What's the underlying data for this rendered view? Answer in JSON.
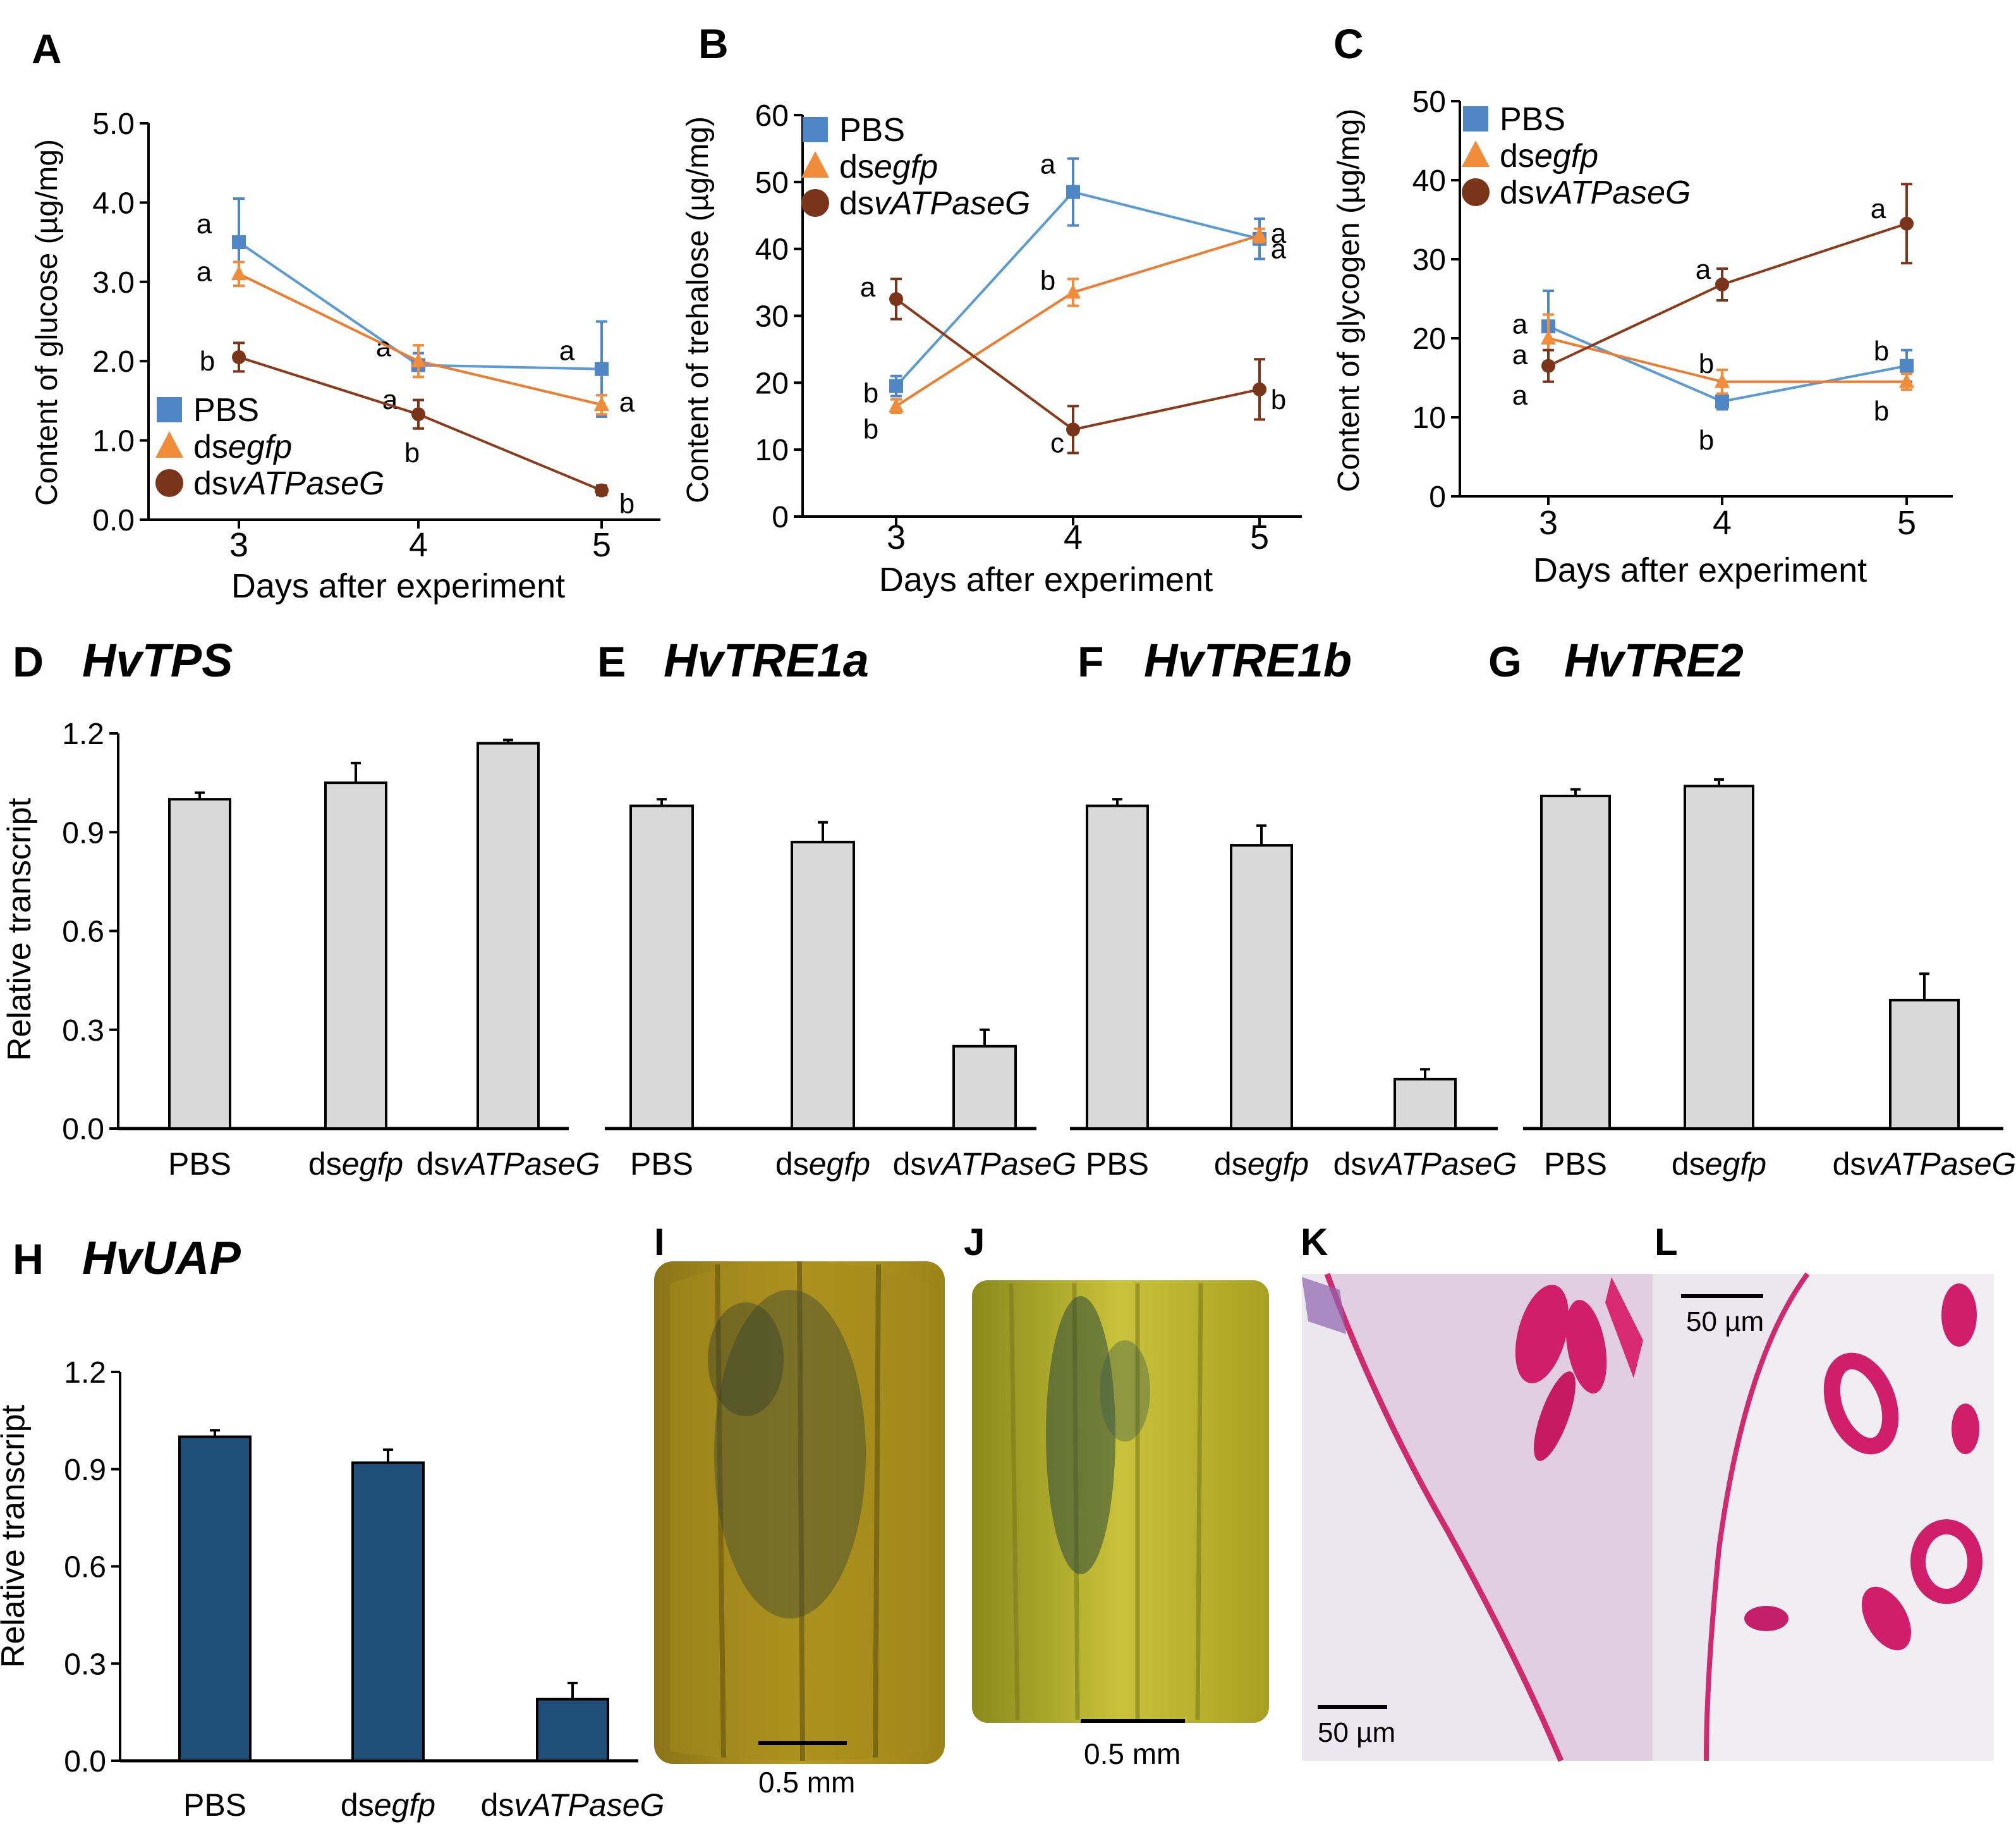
{
  "colors": {
    "pbs": "#4f86c6",
    "dsegfp": "#f08c3a",
    "dsvatpase": "#7a3419",
    "bar_gray": "#d9d9d9",
    "bar_blue": "#1f4e79",
    "axis": "#000000",
    "stain_pink": "#d6246e",
    "tissue_bg": "#e8d9e6"
  },
  "chart_data": [
    {
      "id": "A",
      "type": "line",
      "panel_label": "A",
      "xlabel": "Days after experiment",
      "ylabel": "Content of glucose (µg/mg)",
      "x": [
        3,
        4,
        5
      ],
      "x_ticks": [
        "3",
        "4",
        "5"
      ],
      "ylim": [
        0,
        5
      ],
      "y_ticks": [
        "0.0",
        "1.0",
        "2.0",
        "3.0",
        "4.0",
        "5.0"
      ],
      "legend": {
        "position": "bottom-left",
        "labels": [
          "PBS",
          "dsegfp",
          "dsvATPaseG"
        ]
      },
      "series": [
        {
          "name": "PBS",
          "values": [
            3.5,
            1.95,
            1.9
          ],
          "errors": [
            0.55,
            0.15,
            0.6
          ],
          "letters": [
            "a",
            "a",
            "a"
          ]
        },
        {
          "name": "dsegfp",
          "values": [
            3.1,
            2.0,
            1.45
          ],
          "errors": [
            0.15,
            0.2,
            0.12
          ],
          "letters": [
            "a",
            "a",
            "a"
          ]
        },
        {
          "name": "dsvATPaseG",
          "values": [
            2.05,
            1.33,
            0.37
          ],
          "errors": [
            0.18,
            0.18,
            0.06
          ],
          "letters": [
            "b",
            "b",
            "b"
          ]
        }
      ]
    },
    {
      "id": "B",
      "type": "line",
      "panel_label": "B",
      "xlabel": "Days after experiment",
      "ylabel": "Content of trehalose (µg/mg)",
      "x": [
        3,
        4,
        5
      ],
      "x_ticks": [
        "3",
        "4",
        "5"
      ],
      "ylim": [
        0,
        60
      ],
      "y_ticks": [
        "0",
        "10",
        "20",
        "30",
        "40",
        "50",
        "60"
      ],
      "legend": {
        "position": "top-left",
        "labels": [
          "PBS",
          "dsegfp",
          "dsvATPaseG"
        ]
      },
      "series": [
        {
          "name": "PBS",
          "values": [
            19.5,
            48.5,
            41.5
          ],
          "errors": [
            1.5,
            5.0,
            3.0
          ],
          "letters": [
            "b",
            "a",
            "a"
          ]
        },
        {
          "name": "dsegfp",
          "values": [
            16.5,
            33.5,
            42.0
          ],
          "errors": [
            1.0,
            2.0,
            1.0
          ],
          "letters": [
            "b",
            "b",
            "a"
          ]
        },
        {
          "name": "dsvATPaseG",
          "values": [
            32.5,
            13.0,
            19.0
          ],
          "errors": [
            3.0,
            3.5,
            4.5
          ],
          "letters": [
            "a",
            "c",
            "b"
          ]
        }
      ]
    },
    {
      "id": "C",
      "type": "line",
      "panel_label": "C",
      "xlabel": "Days after experiment",
      "ylabel": "Content of glycogen (µg/mg)",
      "x": [
        3,
        4,
        5
      ],
      "x_ticks": [
        "3",
        "4",
        "5"
      ],
      "ylim": [
        0,
        50
      ],
      "y_ticks": [
        "0",
        "10",
        "20",
        "30",
        "40",
        "50"
      ],
      "legend": {
        "position": "top-left",
        "labels": [
          "PBS",
          "dsegfp",
          "dsvATPaseG"
        ]
      },
      "series": [
        {
          "name": "PBS",
          "values": [
            21.5,
            12.0,
            16.5
          ],
          "errors": [
            4.5,
            1.0,
            2.0
          ],
          "letters": [
            "a",
            "b",
            "b"
          ]
        },
        {
          "name": "dsegfp",
          "values": [
            20.0,
            14.5,
            14.5
          ],
          "errors": [
            3.0,
            1.5,
            1.0
          ],
          "letters": [
            "a",
            "b",
            "b"
          ]
        },
        {
          "name": "dsvATPaseG",
          "values": [
            16.5,
            26.8,
            34.5
          ],
          "errors": [
            2.0,
            2.0,
            5.0
          ],
          "letters": [
            "a",
            "a",
            "a"
          ]
        }
      ]
    },
    {
      "id": "D",
      "type": "bar",
      "panel_label": "D",
      "gene": "HvTPS",
      "ylabel": "Relative transcript",
      "categories": [
        "PBS",
        "dsegfp",
        "dsvATPaseG"
      ],
      "values": [
        1.0,
        1.05,
        1.17
      ],
      "errors": [
        0.02,
        0.06,
        0.01
      ],
      "ylim": [
        0,
        1.2
      ],
      "y_ticks": [
        "0.0",
        "0.3",
        "0.6",
        "0.9",
        "1.2"
      ]
    },
    {
      "id": "E",
      "type": "bar",
      "panel_label": "E",
      "gene": "HvTRE1a",
      "categories": [
        "PBS",
        "dsegfp",
        "dsvATPaseG"
      ],
      "values": [
        0.98,
        0.87,
        0.25
      ],
      "errors": [
        0.02,
        0.06,
        0.05
      ],
      "ylim": [
        0,
        1.2
      ]
    },
    {
      "id": "F",
      "type": "bar",
      "panel_label": "F",
      "gene": "HvTRE1b",
      "categories": [
        "PBS",
        "dsegfp",
        "dsvATPaseG"
      ],
      "values": [
        0.98,
        0.86,
        0.15
      ],
      "errors": [
        0.02,
        0.06,
        0.03
      ],
      "ylim": [
        0,
        1.2
      ]
    },
    {
      "id": "G",
      "type": "bar",
      "panel_label": "G",
      "gene": "HvTRE2",
      "categories": [
        "PBS",
        "dsegfp",
        "dsvATPaseG"
      ],
      "values": [
        1.01,
        1.04,
        0.39
      ],
      "errors": [
        0.02,
        0.02,
        0.08
      ],
      "ylim": [
        0,
        1.2
      ]
    },
    {
      "id": "H",
      "type": "bar",
      "panel_label": "H",
      "gene": "HvUAP",
      "ylabel": "Relative transcript",
      "categories": [
        "PBS",
        "dsegfp",
        "dsvATPaseG"
      ],
      "values": [
        1.0,
        0.92,
        0.19
      ],
      "errors": [
        0.02,
        0.04,
        0.05
      ],
      "ylim": [
        0,
        1.2
      ],
      "y_ticks": [
        "0.0",
        "0.3",
        "0.6",
        "0.9",
        "1.2"
      ]
    }
  ],
  "photos": {
    "I": {
      "label": "I",
      "scale": "0.5  mm"
    },
    "J": {
      "label": "J",
      "scale": "0.5  mm"
    },
    "K": {
      "label": "K",
      "scale": "50 µm"
    },
    "L": {
      "label": "L",
      "scale": "50 µm"
    }
  }
}
